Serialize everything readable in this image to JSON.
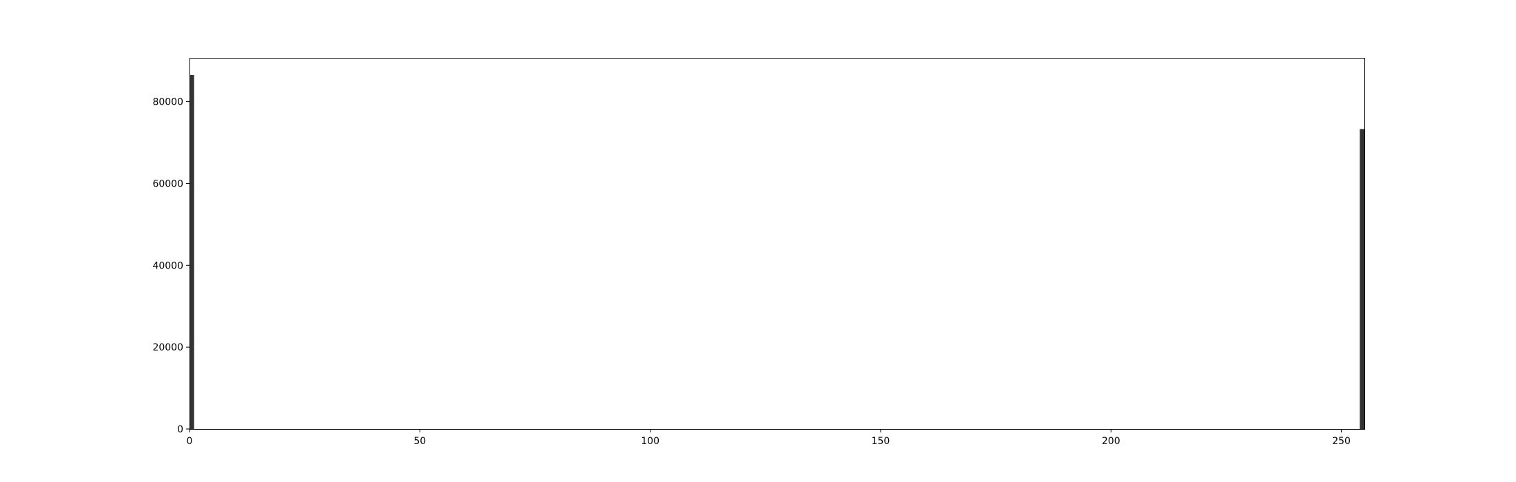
{
  "chart_data": {
    "type": "bar",
    "title": "",
    "xlabel": "",
    "ylabel": "",
    "xlim": [
      0,
      255
    ],
    "ylim": [
      0,
      90700
    ],
    "x_ticks": [
      0,
      50,
      100,
      150,
      200,
      250
    ],
    "y_ticks": [
      0,
      20000,
      40000,
      60000,
      80000
    ],
    "grid": false,
    "legend": "none",
    "bar_color": "#333333",
    "bins": [
      {
        "x_start": 0,
        "x_end": 1,
        "value": 86500
      },
      {
        "x_start": 254,
        "x_end": 255,
        "value": 73300
      }
    ]
  }
}
